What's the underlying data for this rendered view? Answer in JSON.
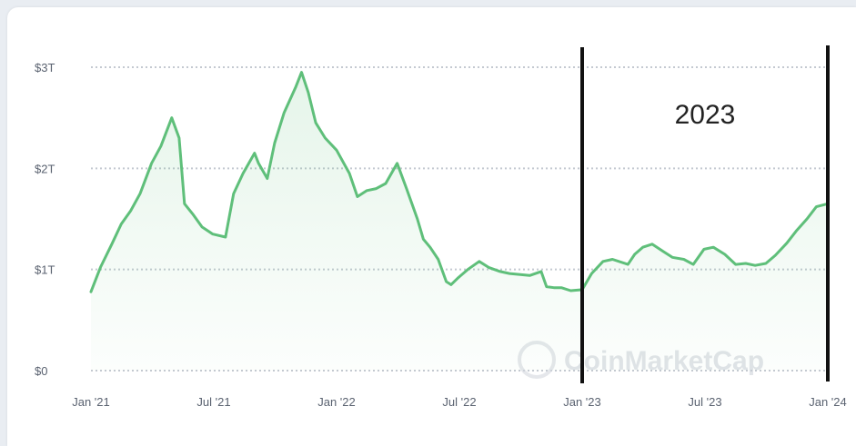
{
  "chart_data": {
    "type": "area",
    "x_ticks": [
      "Jan '21",
      "Jul '21",
      "Jan '22",
      "Jul '22",
      "Jan '23",
      "Jul '23",
      "Jan '24"
    ],
    "y_ticks": [
      "$0",
      "$1T",
      "$2T",
      "$3T"
    ],
    "ylim": [
      0,
      3
    ],
    "grid": true,
    "series": [
      {
        "color": "#5fbf7a",
        "x": [
          "2021-01-01",
          "2021-01-15",
          "2021-02-01",
          "2021-02-15",
          "2021-03-01",
          "2021-03-15",
          "2021-04-01",
          "2021-04-15",
          "2021-05-01",
          "2021-05-12",
          "2021-05-20",
          "2021-06-01",
          "2021-06-15",
          "2021-07-01",
          "2021-07-20",
          "2021-08-01",
          "2021-08-15",
          "2021-09-01",
          "2021-09-07",
          "2021-09-20",
          "2021-10-01",
          "2021-10-15",
          "2021-11-01",
          "2021-11-10",
          "2021-11-20",
          "2021-12-01",
          "2021-12-15",
          "2022-01-01",
          "2022-01-20",
          "2022-02-01",
          "2022-02-15",
          "2022-03-01",
          "2022-03-15",
          "2022-04-01",
          "2022-04-15",
          "2022-05-01",
          "2022-05-10",
          "2022-05-20",
          "2022-06-01",
          "2022-06-13",
          "2022-06-20",
          "2022-07-01",
          "2022-07-15",
          "2022-08-01",
          "2022-08-15",
          "2022-09-01",
          "2022-09-15",
          "2022-10-01",
          "2022-10-15",
          "2022-11-01",
          "2022-11-09",
          "2022-11-20",
          "2022-12-01",
          "2022-12-15",
          "2023-01-01",
          "2023-01-15",
          "2023-02-01",
          "2023-02-15",
          "2023-03-10",
          "2023-03-20",
          "2023-04-01",
          "2023-04-15",
          "2023-05-01",
          "2023-05-15",
          "2023-06-01",
          "2023-06-15",
          "2023-07-01",
          "2023-07-15",
          "2023-08-01",
          "2023-08-17",
          "2023-09-01",
          "2023-09-15",
          "2023-10-01",
          "2023-10-15",
          "2023-11-01",
          "2023-11-15",
          "2023-12-01",
          "2023-12-15",
          "2024-01-01"
        ],
        "values": [
          0.78,
          1.02,
          1.25,
          1.45,
          1.58,
          1.75,
          2.05,
          2.22,
          2.5,
          2.3,
          1.65,
          1.55,
          1.42,
          1.35,
          1.32,
          1.75,
          1.95,
          2.15,
          2.05,
          1.9,
          2.25,
          2.55,
          2.8,
          2.95,
          2.75,
          2.45,
          2.3,
          2.18,
          1.95,
          1.72,
          1.78,
          1.8,
          1.85,
          2.05,
          1.8,
          1.5,
          1.3,
          1.22,
          1.1,
          0.88,
          0.85,
          0.92,
          1.0,
          1.08,
          1.02,
          0.98,
          0.96,
          0.95,
          0.94,
          0.98,
          0.83,
          0.82,
          0.82,
          0.79,
          0.8,
          0.96,
          1.08,
          1.1,
          1.05,
          1.15,
          1.22,
          1.25,
          1.18,
          1.12,
          1.1,
          1.05,
          1.2,
          1.22,
          1.15,
          1.05,
          1.06,
          1.04,
          1.06,
          1.14,
          1.26,
          1.38,
          1.5,
          1.62,
          1.65
        ]
      }
    ],
    "annotations": [
      {
        "text": "2023",
        "span": [
          "2023-01-01",
          "2024-01-01"
        ]
      }
    ]
  },
  "watermark": {
    "text": "CoinMarketCap"
  }
}
